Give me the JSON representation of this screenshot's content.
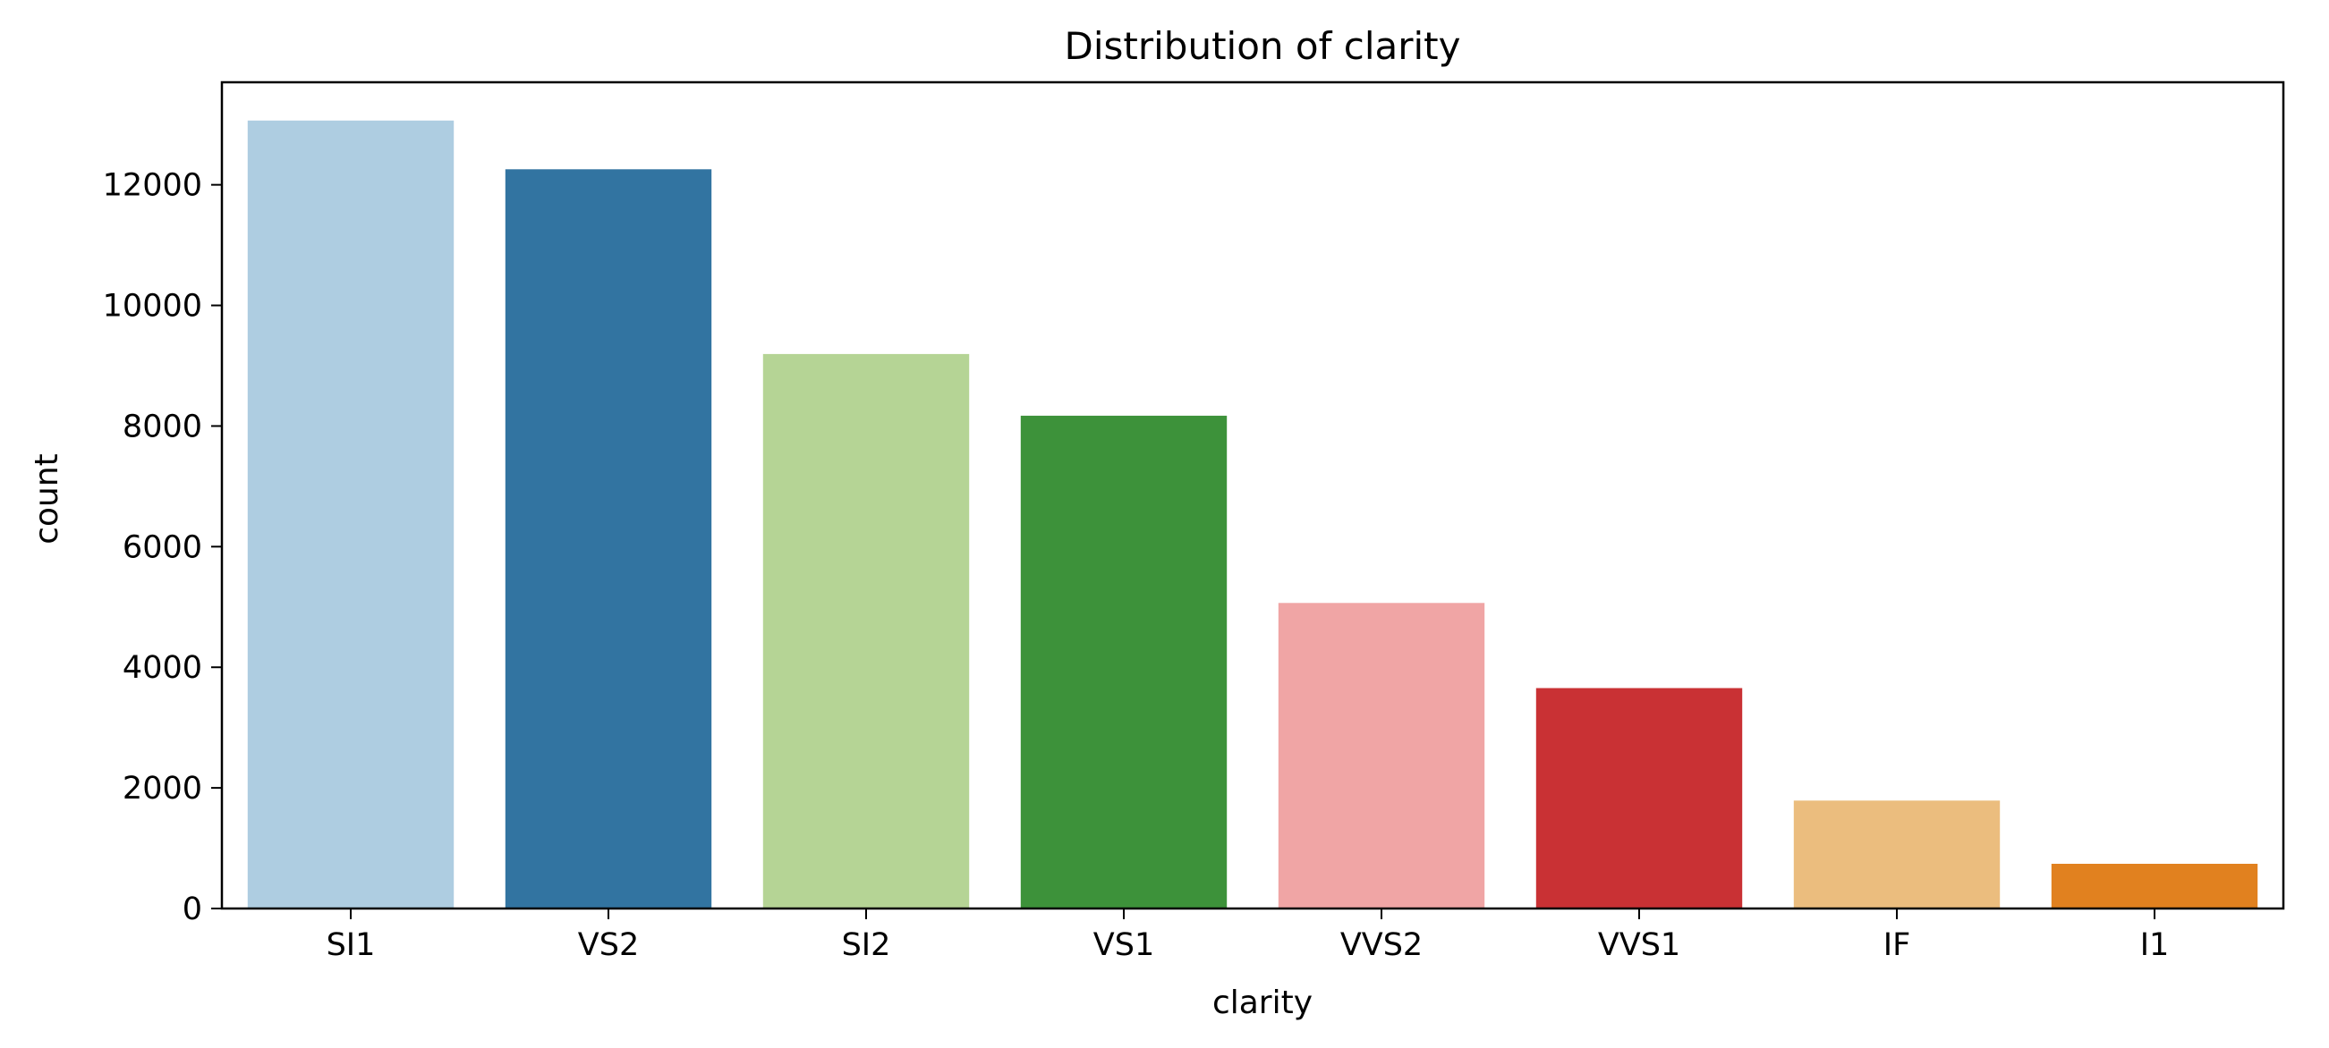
{
  "chart_data": {
    "type": "bar",
    "title": "Distribution of clarity",
    "xlabel": "clarity",
    "ylabel": "count",
    "categories": [
      "SI1",
      "VS2",
      "SI2",
      "VS1",
      "VVS2",
      "VVS1",
      "IF",
      "I1"
    ],
    "values": [
      13065,
      12258,
      9194,
      8171,
      5066,
      3655,
      1790,
      741
    ],
    "colors": [
      "#aecde1",
      "#3274a1",
      "#b5d495",
      "#3d923a",
      "#f0a5a5",
      "#c93134",
      "#ebbd7e",
      "#e1811f"
    ],
    "ylim": [
      0,
      13700
    ],
    "yticks": [
      0,
      2000,
      4000,
      6000,
      8000,
      10000,
      12000
    ],
    "grid": false,
    "legend": false
  }
}
